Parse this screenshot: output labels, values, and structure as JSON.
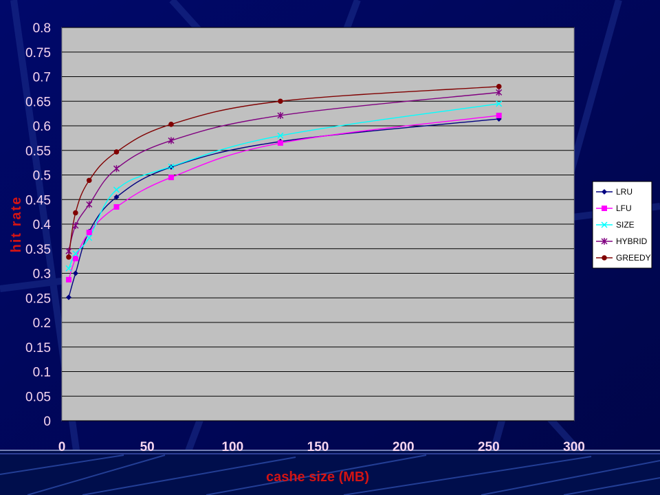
{
  "chart_data": {
    "type": "line",
    "title": "",
    "xlabel": "cashe size (MB)",
    "ylabel": "hit rate",
    "xlim": [
      0,
      300
    ],
    "ylim": [
      0,
      0.8
    ],
    "x_ticks": [
      "0",
      "50",
      "100",
      "150",
      "200",
      "250",
      "300"
    ],
    "y_ticks": [
      "0",
      "0.05",
      "0.1",
      "0.15",
      "0.2",
      "0.25",
      "0.3",
      "0.35",
      "0.4",
      "0.45",
      "0.5",
      "0.55",
      "0.6",
      "0.65",
      "0.7",
      "0.75",
      "0.8"
    ],
    "grid": "horizontal",
    "plot_background": "#C0C0C0",
    "legend_position": "right",
    "x": [
      4,
      8,
      16,
      32,
      64,
      128,
      256
    ],
    "series": [
      {
        "name": "LRU",
        "color": "#000080",
        "marker": "diamond",
        "values": [
          0.251,
          0.3,
          0.385,
          0.455,
          0.516,
          0.568,
          0.614
        ]
      },
      {
        "name": "LFU",
        "color": "#FF00FF",
        "marker": "square",
        "values": [
          0.287,
          0.33,
          0.383,
          0.435,
          0.495,
          0.565,
          0.621
        ]
      },
      {
        "name": "SIZE",
        "color": "#00FFFF",
        "marker": "x",
        "values": [
          0.31,
          0.34,
          0.372,
          0.47,
          0.517,
          0.58,
          0.645
        ]
      },
      {
        "name": "HYBRID",
        "color": "#800080",
        "marker": "star",
        "values": [
          0.345,
          0.397,
          0.44,
          0.513,
          0.57,
          0.621,
          0.668
        ]
      },
      {
        "name": "GREEDY",
        "color": "#800000",
        "marker": "circle",
        "values": [
          0.333,
          0.423,
          0.489,
          0.547,
          0.603,
          0.65,
          0.68
        ]
      }
    ]
  }
}
